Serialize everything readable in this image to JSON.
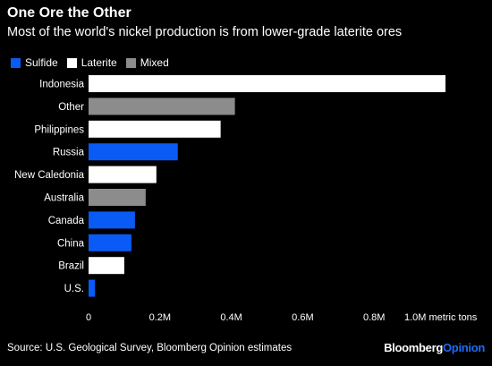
{
  "title": "One Ore the Other",
  "subtitle": "Most of the world's nickel production is from lower-grade laterite ores",
  "legend": [
    {
      "label": "Sulfide",
      "color": "#0a5af5"
    },
    {
      "label": "Laterite",
      "color": "#ffffff"
    },
    {
      "label": "Mixed",
      "color": "#8c8c8c"
    }
  ],
  "source": "Source: U.S. Geological Survey, Bloomberg Opinion estimates",
  "brand": {
    "part1": "Bloomberg",
    "part2": "Opinion"
  },
  "chart_data": {
    "type": "bar",
    "orientation": "horizontal",
    "categories": [
      "Indonesia",
      "Other",
      "Philippines",
      "Russia",
      "New Caledonia",
      "Australia",
      "Canada",
      "China",
      "Brazil",
      "U.S."
    ],
    "values": [
      1000000,
      410000,
      370000,
      250000,
      190000,
      160000,
      130000,
      120000,
      100000,
      18000
    ],
    "types": [
      "Laterite",
      "Mixed",
      "Laterite",
      "Sulfide",
      "Laterite",
      "Mixed",
      "Sulfide",
      "Sulfide",
      "Laterite",
      "Sulfide"
    ],
    "xlim": [
      0,
      1000000
    ],
    "xticks": [
      0,
      200000,
      400000,
      600000,
      800000,
      1000000
    ],
    "xtick_labels": [
      "0",
      "0.2M",
      "0.4M",
      "0.6M",
      "0.8M",
      "1.0M metric tons"
    ],
    "grid": false
  }
}
